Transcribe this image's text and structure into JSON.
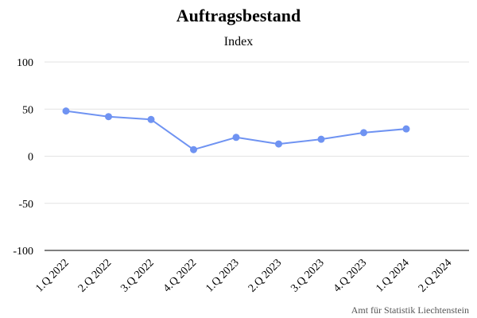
{
  "chart_data": {
    "type": "line",
    "title": "Auftragsbestand",
    "subtitle": "Index",
    "xlabel": "",
    "ylabel": "",
    "categories": [
      "1.Q 2022",
      "2.Q 2022",
      "3.Q 2022",
      "4.Q 2022",
      "1.Q 2023",
      "2.Q 2023",
      "3.Q 2023",
      "4.Q 2023",
      "1.Q 2024",
      "2.Q 2024"
    ],
    "series": [
      {
        "values": [
          48,
          42,
          39,
          7,
          20,
          13,
          18,
          25,
          29,
          null
        ]
      }
    ],
    "ylim": [
      -100,
      100
    ],
    "yticks": [
      100,
      50,
      0,
      -50,
      -100
    ],
    "grid": true,
    "legend": "none",
    "line_color": "#6f93f2",
    "source": "Amt für Statistik Liechtenstein"
  }
}
